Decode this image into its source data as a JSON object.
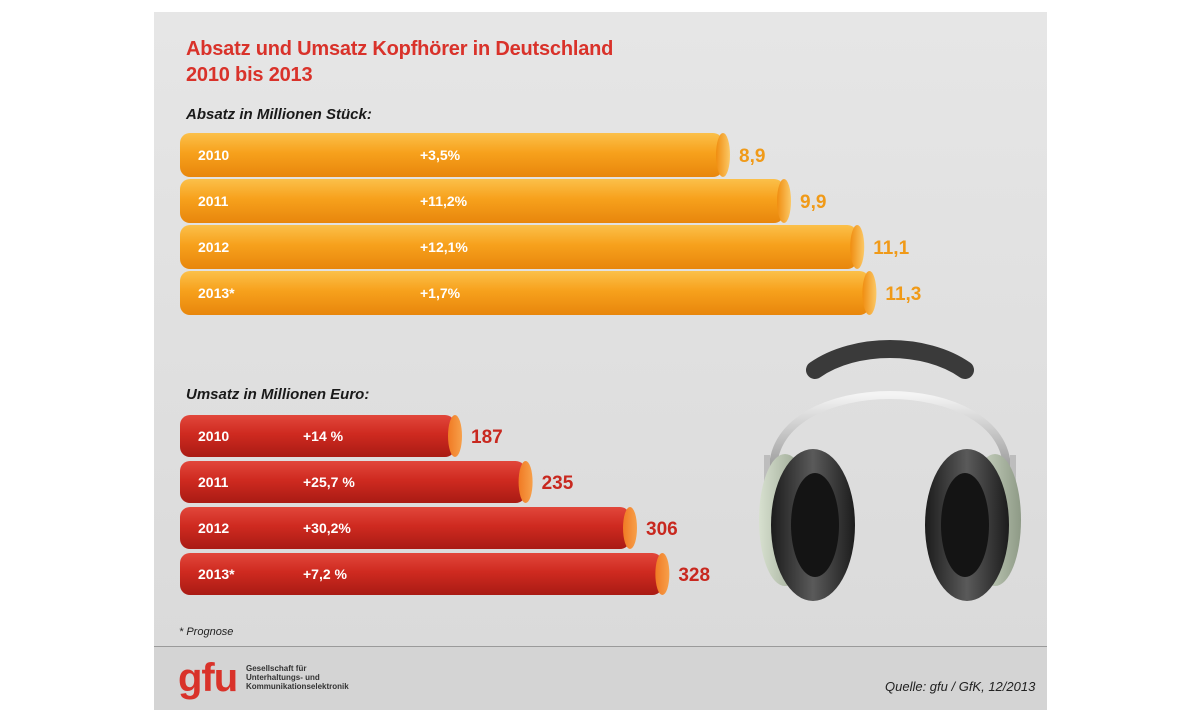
{
  "title_line1": "Absatz und Umsatz Kopfhörer in Deutschland",
  "title_line2": "2010 bis 2013",
  "footnote": "* Prognose",
  "source": "Quelle: gfu / GfK, 12/2013",
  "logo": {
    "name": "gfu",
    "line1": "Gesellschaft für",
    "line2": "Unterhaltungs- und",
    "line3": "Kommunikationselektronik"
  },
  "colors": {
    "orange": "#f5a01a",
    "red": "#d0281f",
    "value_orange": "#f09a18",
    "value_red": "#c8281f"
  },
  "chart_data": [
    {
      "type": "bar",
      "orientation": "horizontal",
      "title": "Absatz in Millionen Stück:",
      "categories": [
        "2010",
        "2011",
        "2012",
        "2013*"
      ],
      "values": [
        8.9,
        9.9,
        11.1,
        11.3
      ],
      "value_labels": [
        "8,9",
        "9,9",
        "11,1",
        "11,3"
      ],
      "growth_labels": [
        "+3,5%",
        "+11,2%",
        "+12,1%",
        "+1,7%"
      ],
      "xlim": [
        0,
        12
      ]
    },
    {
      "type": "bar",
      "orientation": "horizontal",
      "title": "Umsatz in Millionen Euro:",
      "categories": [
        "2010",
        "2011",
        "2012",
        "2013*"
      ],
      "values": [
        187,
        235,
        306,
        328
      ],
      "value_labels": [
        "187",
        "235",
        "306",
        "328"
      ],
      "growth_labels": [
        "+14 %",
        "+25,7 %",
        "+30,2%",
        "+7,2 %"
      ],
      "xlim": [
        0,
        350
      ]
    }
  ]
}
